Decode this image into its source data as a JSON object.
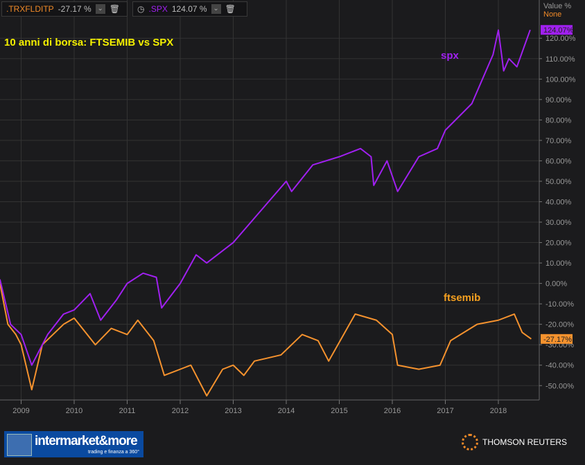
{
  "legend": [
    {
      "symbol": ".TRXFLDITP",
      "value": "-27.17 %",
      "color": "#f08a28"
    },
    {
      "symbol": ".SPX",
      "value": "124.07 %",
      "color": "#a020f0"
    }
  ],
  "axis_header": {
    "label": "Value %",
    "mode": "None"
  },
  "chart_data": {
    "type": "line",
    "title": "10 anni di borsa:  FTSEMIB vs SPX",
    "ylim": [
      -55,
      128
    ],
    "xlim": [
      2008.6,
      2018.8
    ],
    "y_ticks": [
      "120.00%",
      "110.00%",
      "100.00%",
      "90.00%",
      "80.00%",
      "70.00%",
      "60.00%",
      "50.00%",
      "40.00%",
      "30.00%",
      "20.00%",
      "10.00%",
      "0.00%",
      "-10.00%",
      "-20.00%",
      "-30.00%",
      "-40.00%",
      "-50.00%"
    ],
    "x_ticks": [
      "2009",
      "2010",
      "2011",
      "2012",
      "2013",
      "2014",
      "2015",
      "2016",
      "2017",
      "2018"
    ],
    "grid": true,
    "series": [
      {
        "name": "spx",
        "color": "#a020f0",
        "last_label": "124.07%",
        "x": [
          2008.6,
          2008.8,
          2009.0,
          2009.2,
          2009.5,
          2009.8,
          2010.0,
          2010.3,
          2010.5,
          2010.8,
          2011.0,
          2011.3,
          2011.55,
          2011.65,
          2012.0,
          2012.3,
          2012.5,
          2013.0,
          2013.5,
          2014.0,
          2014.1,
          2014.5,
          2015.0,
          2015.4,
          2015.6,
          2015.65,
          2015.9,
          2016.1,
          2016.5,
          2016.85,
          2017.0,
          2017.5,
          2017.9,
          2018.0,
          2018.1,
          2018.2,
          2018.35,
          2018.6
        ],
        "y": [
          2,
          -20,
          -25,
          -40,
          -25,
          -15,
          -13,
          -5,
          -18,
          -8,
          0,
          5,
          3,
          -12,
          0,
          14,
          10,
          20,
          35,
          50,
          45,
          58,
          62,
          66,
          62,
          48,
          60,
          45,
          62,
          66,
          75,
          88,
          112,
          124,
          104,
          110,
          106,
          124.07
        ]
      },
      {
        "name": "ftsemib",
        "color": "#f5922e",
        "last_label": "-27.17%",
        "x": [
          2008.6,
          2008.75,
          2008.9,
          2009.0,
          2009.2,
          2009.4,
          2009.8,
          2010.0,
          2010.4,
          2010.7,
          2011.0,
          2011.2,
          2011.5,
          2011.7,
          2012.0,
          2012.2,
          2012.5,
          2012.8,
          2013.0,
          2013.2,
          2013.4,
          2013.9,
          2014.3,
          2014.6,
          2014.8,
          2015.3,
          2015.7,
          2016.0,
          2016.1,
          2016.5,
          2016.9,
          2017.1,
          2017.6,
          2018.0,
          2018.3,
          2018.45,
          2018.62
        ],
        "y": [
          0,
          -20,
          -25,
          -30,
          -52,
          -30,
          -20,
          -17,
          -30,
          -22,
          -25,
          -18,
          -28,
          -45,
          -42,
          -40,
          -55,
          -42,
          -40,
          -45,
          -38,
          -35,
          -25,
          -28,
          -38,
          -15,
          -18,
          -25,
          -40,
          -42,
          -40,
          -28,
          -20,
          -18,
          -15,
          -24,
          -27.17
        ]
      }
    ],
    "annotations": [
      {
        "text": "spx"
      },
      {
        "text": "ftsemib"
      }
    ]
  },
  "footer": {
    "logo_left": "intermarket&more",
    "logo_left_tagline": "trading e finanza a 360°",
    "logo_right": "THOMSON REUTERS"
  }
}
